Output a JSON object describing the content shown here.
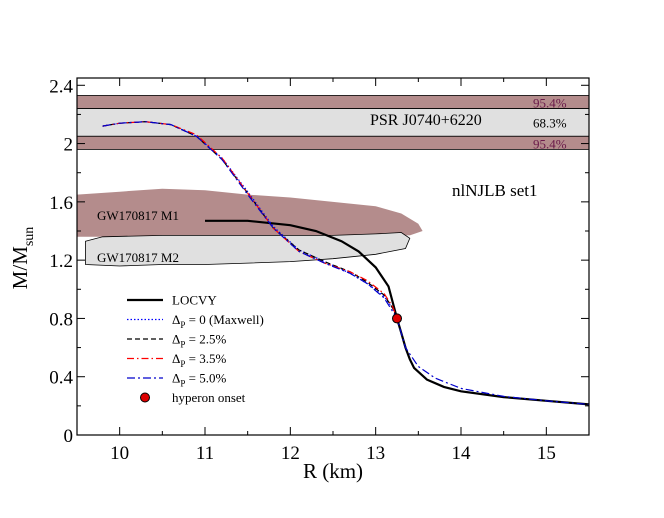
{
  "chart_data": {
    "type": "line",
    "xlabel": "R (km)",
    "ylabel_main": "M/M",
    "ylabel_sub": "sun",
    "xlim": [
      9.5,
      15.5
    ],
    "ylim": [
      0,
      2.45
    ],
    "xticks": [
      10,
      11,
      12,
      13,
      14,
      15
    ],
    "yticks": [
      0,
      0.4,
      0.8,
      1.2,
      1.6,
      2,
      2.4
    ],
    "ytick_labels": [
      "0",
      "0.4",
      "0.8",
      "1.2",
      "1.6",
      "2",
      "2.4"
    ],
    "set_label": "nlNJLB set1",
    "bands": [
      {
        "name": "PSR J0740+6220 (95.4% upper)",
        "label": "95.4%",
        "y_range": [
          2.24,
          2.33
        ],
        "color": "#b48c8c"
      },
      {
        "name": "PSR J0740+6220 (68.3%)",
        "label": "68.3%",
        "y_range": [
          2.05,
          2.24
        ],
        "color": "#e0e0e0"
      },
      {
        "name": "PSR J0740+6220 (95.4% lower)",
        "label": "95.4%",
        "y_range": [
          1.96,
          2.05
        ],
        "color": "#b48c8c"
      }
    ],
    "band_title": "PSR J0740+6220",
    "regions": [
      {
        "name": "GW170817 M1",
        "color": "#b48c8c",
        "polygon": [
          [
            9.5,
            1.65
          ],
          [
            10.0,
            1.67
          ],
          [
            10.5,
            1.69
          ],
          [
            11.0,
            1.68
          ],
          [
            11.5,
            1.65
          ],
          [
            12.0,
            1.63
          ],
          [
            12.5,
            1.6
          ],
          [
            13.0,
            1.57
          ],
          [
            13.3,
            1.52
          ],
          [
            13.5,
            1.45
          ],
          [
            13.55,
            1.4
          ],
          [
            13.4,
            1.37
          ],
          [
            13.0,
            1.37
          ],
          [
            12.0,
            1.37
          ],
          [
            11.0,
            1.37
          ],
          [
            10.0,
            1.36
          ],
          [
            9.5,
            1.36
          ]
        ]
      },
      {
        "name": "GW170817 M2",
        "color": "#e0e0e0",
        "polygon": [
          [
            9.6,
            1.33
          ],
          [
            9.8,
            1.36
          ],
          [
            10.5,
            1.37
          ],
          [
            11.5,
            1.37
          ],
          [
            12.5,
            1.37
          ],
          [
            13.0,
            1.38
          ],
          [
            13.3,
            1.39
          ],
          [
            13.4,
            1.35
          ],
          [
            13.35,
            1.28
          ],
          [
            13.0,
            1.24
          ],
          [
            12.5,
            1.21
          ],
          [
            12.0,
            1.19
          ],
          [
            11.5,
            1.18
          ],
          [
            11.0,
            1.17
          ],
          [
            10.5,
            1.17
          ],
          [
            10.0,
            1.16
          ],
          [
            9.6,
            1.17
          ]
        ]
      }
    ],
    "series": [
      {
        "name": "LOCVY",
        "color": "#000000",
        "dash": "",
        "width": 2.2,
        "x": [
          11.0,
          11.5,
          12.0,
          12.3,
          12.6,
          12.8,
          13.0,
          13.15,
          13.25,
          13.3,
          13.35,
          13.4,
          13.45,
          13.6,
          13.8,
          14.0,
          14.5,
          15.0,
          15.5
        ],
        "y": [
          1.47,
          1.47,
          1.44,
          1.4,
          1.33,
          1.26,
          1.15,
          1.02,
          0.8,
          0.7,
          0.6,
          0.52,
          0.46,
          0.38,
          0.33,
          0.3,
          0.26,
          0.235,
          0.21
        ]
      },
      {
        "name": "Δ_P = 0  (Maxwell)",
        "legend_main": "Δ",
        "legend_sub": "P",
        "legend_rest": " = 0  (Maxwell)",
        "color": "#0000ff",
        "dash": "1.5,2",
        "width": 1.2,
        "x": [
          9.8,
          10.0,
          10.3,
          10.6,
          10.9,
          11.2,
          11.5,
          11.8,
          12.1,
          12.4,
          12.7,
          12.9,
          13.1,
          13.2,
          13.25
        ],
        "y": [
          2.12,
          2.14,
          2.15,
          2.13,
          2.05,
          1.9,
          1.67,
          1.43,
          1.27,
          1.19,
          1.11,
          1.04,
          0.95,
          0.87,
          0.8
        ]
      },
      {
        "name": "Δ_P = 2.5%",
        "legend_main": "Δ",
        "legend_sub": "P",
        "legend_rest": " = 2.5%",
        "color": "#000000",
        "dash": "5,3",
        "width": 1.2,
        "x": [
          9.8,
          10.0,
          10.3,
          10.6,
          10.9,
          11.2,
          11.5,
          11.8,
          12.1,
          12.4,
          12.7,
          12.9,
          13.1,
          13.2,
          13.25
        ],
        "y": [
          2.12,
          2.14,
          2.15,
          2.13,
          2.05,
          1.89,
          1.66,
          1.42,
          1.27,
          1.19,
          1.12,
          1.05,
          0.96,
          0.87,
          0.8
        ]
      },
      {
        "name": "Δ_P = 3.5%",
        "legend_main": "Δ",
        "legend_sub": "P",
        "legend_rest": " = 3.5%",
        "color": "#ff0000",
        "dash": "7,3,1.5,3",
        "width": 1.2,
        "x": [
          9.8,
          10.0,
          10.3,
          10.6,
          10.9,
          11.2,
          11.5,
          11.8,
          12.1,
          12.4,
          12.7,
          12.9,
          13.1,
          13.2,
          13.25
        ],
        "y": [
          2.12,
          2.14,
          2.15,
          2.13,
          2.06,
          1.9,
          1.66,
          1.42,
          1.26,
          1.18,
          1.12,
          1.06,
          0.97,
          0.88,
          0.8
        ]
      },
      {
        "name": "Δ_P = 5.0%",
        "legend_main": "Δ",
        "legend_sub": "P",
        "legend_rest": " = 5.0%",
        "color": "#0000cc",
        "dash": "8,3,2,3",
        "width": 1.2,
        "x": [
          9.8,
          10.0,
          10.3,
          10.6,
          10.9,
          11.2,
          11.5,
          11.8,
          12.1,
          12.4,
          12.7,
          12.9,
          13.1,
          13.25,
          13.35,
          13.5,
          13.7,
          14.0,
          14.5,
          15.0,
          15.5
        ],
        "y": [
          2.12,
          2.14,
          2.15,
          2.13,
          2.05,
          1.89,
          1.65,
          1.42,
          1.26,
          1.18,
          1.11,
          1.04,
          0.94,
          0.8,
          0.6,
          0.47,
          0.39,
          0.32,
          0.265,
          0.235,
          0.21
        ]
      }
    ],
    "marker": {
      "name": "hyperon onset",
      "x": 13.25,
      "y": 0.8,
      "color": "#dd0000"
    },
    "region_labels": [
      "GW170817 M1",
      "GW170817 M2"
    ],
    "legend": {
      "placement": "bottom-left"
    }
  }
}
